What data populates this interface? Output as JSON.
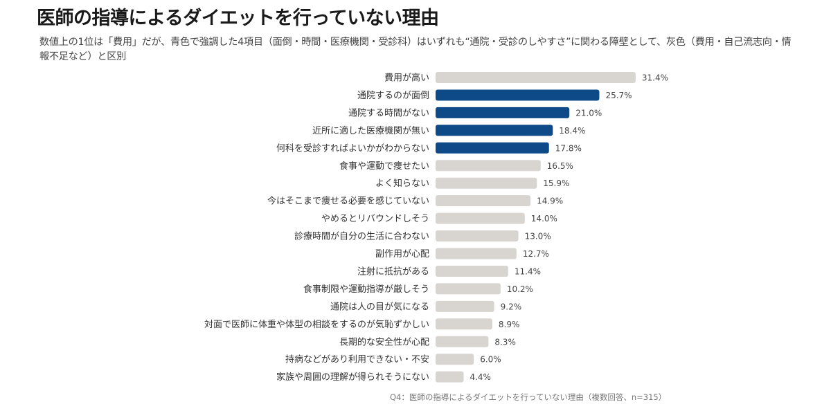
{
  "title": "医師の指導によるダイエットを行っていない理由",
  "subtitle": "数値上の1位は「費用」だが、青色で強調した4項目（面倒・時間・医療機関・受診科）はいずれも“通院・受診のしやすさ”に関わる障壁として、灰色（費用・自己流志向・情報不足など）と区別",
  "footnote": "Q4：医師の指導によるダイエットを行っていない理由（複数回答、n=315）",
  "colors": {
    "highlight": "#0d4a87",
    "base": "#d8d5d0"
  },
  "chart_data": {
    "type": "bar",
    "orientation": "horizontal",
    "unit": "%",
    "xlim": [
      0,
      35
    ],
    "grid": false,
    "categories": [
      "費用が高い",
      "通院するのが面倒",
      "通院する時間がない",
      "近所に適した医療機関が無い",
      "何科を受診すればよいかがわからない",
      "食事や運動で痩せたい",
      "よく知らない",
      "今はそこまで痩せる必要を感じていない",
      "やめるとリバウンドしそう",
      "診療時間が自分の生活に合わない",
      "副作用が心配",
      "注射に抵抗がある",
      "食事制限や運動指導が厳しそう",
      "通院は人の目が気になる",
      "対面で医師に体重や体型の相談をするのが気恥ずかしい",
      "長期的な安全性が心配",
      "持病などがあり利用できない・不安",
      "家族や周囲の理解が得られそうにない"
    ],
    "values": [
      31.4,
      25.7,
      21.0,
      18.4,
      17.8,
      16.5,
      15.9,
      14.9,
      14.0,
      13.0,
      12.7,
      11.4,
      10.2,
      9.2,
      8.9,
      8.3,
      6.0,
      4.4
    ],
    "value_labels": [
      "31.4%",
      "25.7%",
      "21.0%",
      "18.4%",
      "17.8%",
      "16.5%",
      "15.9%",
      "14.9%",
      "14.0%",
      "13.0%",
      "12.7%",
      "11.4%",
      "10.2%",
      "9.2%",
      "8.9%",
      "8.3%",
      "6.0%",
      "4.4%"
    ],
    "highlighted": [
      false,
      true,
      true,
      true,
      true,
      false,
      false,
      false,
      false,
      false,
      false,
      false,
      false,
      false,
      false,
      false,
      false,
      false
    ]
  }
}
